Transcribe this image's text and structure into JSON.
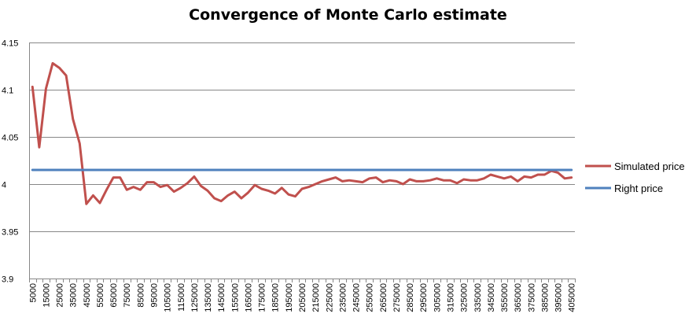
{
  "chart_data": {
    "type": "line",
    "title": "Convergence of Monte Carlo estimate",
    "xlabel": "",
    "ylabel": "",
    "ylim": [
      3.9,
      4.15
    ],
    "yticks": [
      "3.9",
      "3.95",
      "4",
      "4.05",
      "4.1",
      "4.15"
    ],
    "grid": "horizontal",
    "legend_position": "right",
    "x": [
      5000,
      10000,
      15000,
      20000,
      25000,
      30000,
      35000,
      40000,
      45000,
      50000,
      55000,
      60000,
      65000,
      70000,
      75000,
      80000,
      85000,
      90000,
      95000,
      100000,
      105000,
      110000,
      115000,
      120000,
      125000,
      130000,
      135000,
      140000,
      145000,
      150000,
      155000,
      160000,
      165000,
      170000,
      175000,
      180000,
      185000,
      190000,
      195000,
      200000,
      205000,
      210000,
      215000,
      220000,
      225000,
      230000,
      235000,
      240000,
      245000,
      250000,
      255000,
      260000,
      265000,
      270000,
      275000,
      280000,
      285000,
      290000,
      295000,
      300000,
      305000,
      310000,
      315000,
      320000,
      325000,
      330000,
      335000,
      340000,
      345000,
      350000,
      355000,
      360000,
      365000,
      370000,
      375000,
      380000,
      385000,
      390000,
      395000,
      400000,
      405000
    ],
    "x_tick_labels": [
      "5000",
      "15000",
      "25000",
      "35000",
      "45000",
      "55000",
      "65000",
      "75000",
      "85000",
      "95000",
      "105000",
      "115000",
      "125000",
      "135000",
      "145000",
      "155000",
      "165000",
      "175000",
      "185000",
      "195000",
      "205000",
      "215000",
      "225000",
      "235000",
      "245000",
      "255000",
      "265000",
      "275000",
      "285000",
      "295000",
      "305000",
      "315000",
      "325000",
      "335000",
      "345000",
      "355000",
      "365000",
      "375000",
      "385000",
      "395000",
      "405000"
    ],
    "series": [
      {
        "name": "Simulated price",
        "color": "#c0504d",
        "values": [
          4.103,
          4.039,
          4.101,
          4.128,
          4.123,
          4.115,
          4.069,
          4.043,
          3.979,
          3.988,
          3.98,
          3.994,
          4.007,
          4.007,
          3.994,
          3.997,
          3.994,
          4.002,
          4.002,
          3.997,
          3.999,
          3.992,
          3.996,
          4.001,
          4.008,
          3.998,
          3.993,
          3.985,
          3.982,
          3.988,
          3.992,
          3.985,
          3.991,
          3.999,
          3.995,
          3.993,
          3.99,
          3.996,
          3.989,
          3.987,
          3.995,
          3.997,
          4.0,
          4.003,
          4.005,
          4.007,
          4.003,
          4.004,
          4.003,
          4.002,
          4.006,
          4.007,
          4.002,
          4.004,
          4.003,
          4.0,
          4.005,
          4.003,
          4.003,
          4.004,
          4.006,
          4.004,
          4.004,
          4.001,
          4.005,
          4.004,
          4.004,
          4.006,
          4.01,
          4.008,
          4.006,
          4.008,
          4.003,
          4.008,
          4.007,
          4.01,
          4.01,
          4.014,
          4.012,
          4.006,
          4.007
        ]
      },
      {
        "name": "Right price",
        "color": "#4f81bd",
        "values": [
          4.015,
          4.015,
          4.015,
          4.015,
          4.015,
          4.015,
          4.015,
          4.015,
          4.015,
          4.015,
          4.015,
          4.015,
          4.015,
          4.015,
          4.015,
          4.015,
          4.015,
          4.015,
          4.015,
          4.015,
          4.015,
          4.015,
          4.015,
          4.015,
          4.015,
          4.015,
          4.015,
          4.015,
          4.015,
          4.015,
          4.015,
          4.015,
          4.015,
          4.015,
          4.015,
          4.015,
          4.015,
          4.015,
          4.015,
          4.015,
          4.015,
          4.015,
          4.015,
          4.015,
          4.015,
          4.015,
          4.015,
          4.015,
          4.015,
          4.015,
          4.015,
          4.015,
          4.015,
          4.015,
          4.015,
          4.015,
          4.015,
          4.015,
          4.015,
          4.015,
          4.015,
          4.015,
          4.015,
          4.015,
          4.015,
          4.015,
          4.015,
          4.015,
          4.015,
          4.015,
          4.015,
          4.015,
          4.015,
          4.015,
          4.015,
          4.015,
          4.015,
          4.015,
          4.015,
          4.015,
          4.015
        ]
      }
    ]
  }
}
